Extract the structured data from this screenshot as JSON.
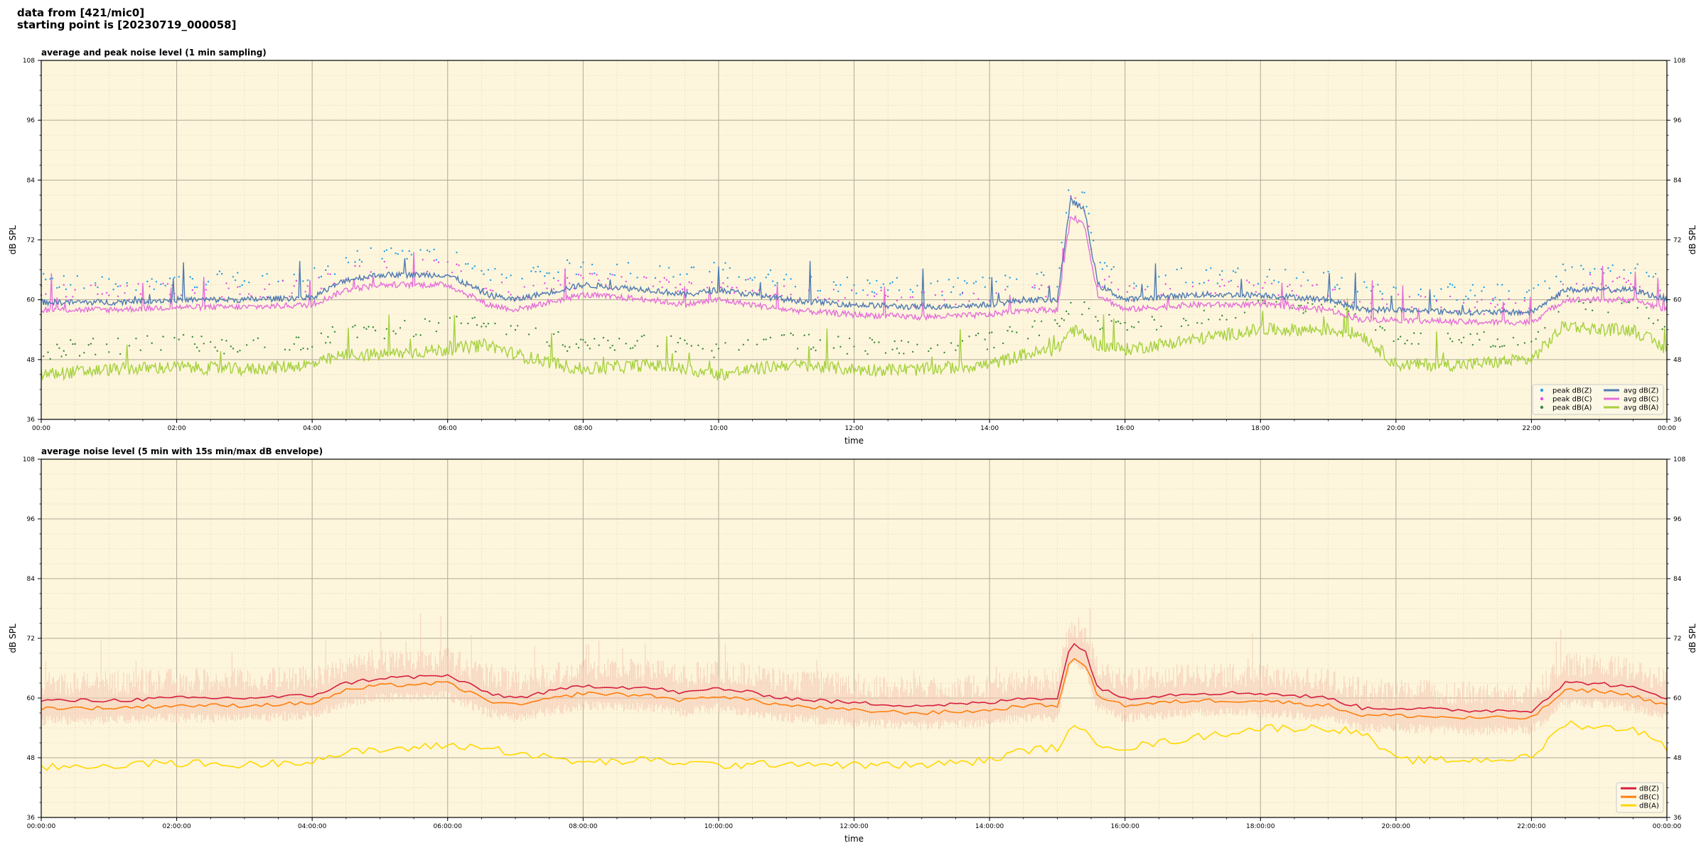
{
  "header": {
    "line1": "data from [421/mic0]",
    "line2": "starting point is [20230719_000058]"
  },
  "colors": {
    "plot_bg": "#fdf6dc",
    "peak_z": "#1f9fe8",
    "peak_c": "#e64ae6",
    "peak_a": "#3a8a3a",
    "avg_z": "#4f7bb2",
    "avg_c": "#e56fd9",
    "avg_a": "#a6d13f",
    "dbz": "#d61f3f",
    "dbc": "#ff7f0e",
    "dba": "#ffd700",
    "envelope": "#f6c9b4"
  },
  "chart_data": [
    {
      "type": "scatter",
      "title": "average and peak noise level (1 min sampling)",
      "xlabel": "time",
      "ylabel": "dB SPL",
      "ylim": [
        36,
        108
      ],
      "yticks": [
        36,
        48,
        60,
        72,
        84,
        96,
        108
      ],
      "xlim_hours": [
        0,
        24
      ],
      "xtick_labels": [
        "00:00",
        "02:00",
        "04:00",
        "06:00",
        "08:00",
        "10:00",
        "12:00",
        "14:00",
        "16:00",
        "18:00",
        "20:00",
        "22:00",
        "00:00"
      ],
      "grid": true,
      "legend": "lower-right",
      "legend_entries": [
        "peak dB(Z)",
        "peak dB(C)",
        "peak dB(A)",
        "avg dB(Z)",
        "avg dB(C)",
        "avg dB(A)"
      ],
      "series": [
        {
          "name": "avg dB(Z)",
          "x": [
            0,
            1,
            2,
            3,
            4,
            4.5,
            5,
            6,
            6.6,
            7,
            8,
            9,
            9.5,
            10,
            10.5,
            11,
            12,
            13,
            14,
            14.5,
            15,
            15.2,
            15.4,
            15.6,
            16,
            17,
            18,
            19,
            19.5,
            20,
            21,
            22,
            22.5,
            23,
            23.5,
            24
          ],
          "y": [
            59.5,
            59.5,
            60,
            60,
            60.5,
            64,
            65,
            65,
            61,
            60,
            63,
            62,
            61,
            62,
            61,
            60,
            59,
            58.5,
            59,
            60,
            60,
            80,
            78,
            63,
            60,
            61,
            61,
            60,
            58,
            58,
            57.5,
            57.5,
            62,
            62,
            62,
            60
          ]
        },
        {
          "name": "avg dB(C)",
          "x": [
            0,
            1,
            2,
            3,
            4,
            4.5,
            5,
            6,
            6.6,
            7,
            8,
            9,
            9.5,
            10,
            10.5,
            11,
            12,
            13,
            14,
            14.5,
            15,
            15.2,
            15.4,
            15.6,
            16,
            17,
            18,
            19,
            19.5,
            20,
            21,
            22,
            22.5,
            23,
            23.5,
            24
          ],
          "y": [
            58,
            58,
            58.5,
            58.5,
            59,
            62,
            63,
            63,
            59,
            58,
            61,
            60,
            59,
            60,
            59,
            58,
            57,
            56.5,
            57,
            58,
            58,
            77,
            75,
            61,
            58,
            59,
            59,
            58,
            56,
            56,
            55.5,
            55.5,
            60,
            60,
            60,
            58
          ]
        },
        {
          "name": "avg dB(A)",
          "x": [
            0,
            1,
            2,
            3,
            4,
            4.5,
            5,
            6,
            6.6,
            7,
            8,
            9,
            9.5,
            10,
            10.5,
            11,
            12,
            13,
            14,
            14.5,
            15,
            15.2,
            15.4,
            15.6,
            16,
            17,
            18,
            19,
            19.5,
            20,
            21,
            22,
            22.5,
            23,
            23.5,
            24
          ],
          "y": [
            45,
            46,
            46.5,
            46,
            47,
            49,
            49,
            50,
            51,
            49,
            46,
            47,
            46,
            45,
            46,
            47,
            46,
            46,
            47,
            49,
            50,
            54,
            53,
            51,
            50,
            52,
            54,
            54,
            53,
            47,
            47,
            48,
            55,
            54,
            54,
            50
          ]
        }
      ]
    },
    {
      "type": "line",
      "title": "average noise level (5 min with 15s min/max dB envelope)",
      "xlabel": "time",
      "ylabel": "dB SPL",
      "ylim": [
        36,
        108
      ],
      "yticks": [
        36,
        48,
        60,
        72,
        84,
        96,
        108
      ],
      "xlim_hours": [
        0,
        24
      ],
      "xtick_labels": [
        "00:00:00",
        "02:00:00",
        "04:00:00",
        "06:00:00",
        "08:00:00",
        "10:00:00",
        "12:00:00",
        "14:00:00",
        "16:00:00",
        "18:00:00",
        "20:00:00",
        "22:00:00",
        "00:00:00"
      ],
      "grid": true,
      "legend": "lower-right",
      "legend_entries": [
        "dB(Z)",
        "dB(C)",
        "dB(A)"
      ],
      "series": [
        {
          "name": "dB(Z)",
          "x": [
            0,
            1,
            2,
            3,
            4,
            4.5,
            5,
            6,
            6.6,
            7,
            8,
            9,
            9.5,
            10,
            10.5,
            11,
            12,
            13,
            14,
            14.5,
            15,
            15.2,
            15.4,
            15.6,
            16,
            17,
            18,
            19,
            19.5,
            20,
            21,
            22,
            22.5,
            23,
            23.5,
            24
          ],
          "y": [
            59.5,
            59.5,
            60,
            60,
            60.5,
            63,
            64,
            64.5,
            61,
            60,
            62.5,
            62,
            61,
            62,
            61,
            60,
            59,
            58.5,
            59,
            60,
            60,
            71,
            70,
            62,
            60,
            61,
            61,
            60,
            58,
            58,
            57.5,
            57.5,
            63,
            63,
            62,
            60
          ]
        },
        {
          "name": "dB(C)",
          "x": [
            0,
            1,
            2,
            3,
            4,
            4.5,
            5,
            6,
            6.6,
            7,
            8,
            9,
            9.5,
            10,
            10.5,
            11,
            12,
            13,
            14,
            14.5,
            15,
            15.2,
            15.4,
            15.6,
            16,
            17,
            18,
            19,
            19.5,
            20,
            21,
            22,
            22.5,
            23,
            23.5,
            24
          ],
          "y": [
            58,
            58,
            58.5,
            58.5,
            59,
            61.5,
            62.5,
            63,
            59.5,
            58.5,
            61,
            60.5,
            59.5,
            60.5,
            59.5,
            58.5,
            57.5,
            57,
            57.5,
            58.5,
            58.5,
            68,
            67,
            60.5,
            58.5,
            59.5,
            59.5,
            58.5,
            56.5,
            56.5,
            56,
            56,
            61.5,
            61.5,
            60.5,
            58.5
          ]
        },
        {
          "name": "dB(A)",
          "x": [
            0,
            1,
            2,
            3,
            4,
            4.5,
            5,
            6,
            6.6,
            7,
            8,
            9,
            9.5,
            10,
            10.5,
            11,
            12,
            13,
            14,
            14.5,
            15,
            15.2,
            15.4,
            15.6,
            16,
            17,
            18,
            19,
            19.5,
            20,
            21,
            22,
            22.5,
            23,
            23.5,
            24
          ],
          "y": [
            46,
            46.5,
            47,
            46.5,
            47.5,
            49,
            49.5,
            50.5,
            50,
            49,
            47,
            47.5,
            47,
            46.5,
            46.5,
            47,
            46.5,
            46.5,
            47.5,
            49.5,
            50,
            54,
            53,
            51,
            50,
            52,
            54,
            54,
            53,
            47.5,
            47.5,
            48,
            55,
            54,
            54,
            50
          ]
        }
      ]
    }
  ]
}
